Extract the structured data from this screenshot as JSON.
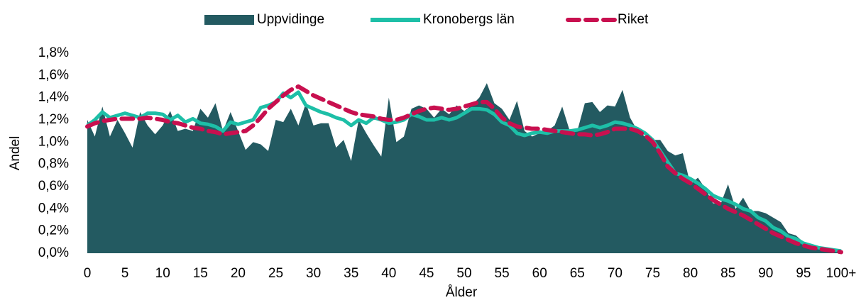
{
  "chart_data": {
    "type": "line",
    "x_label": "Ålder",
    "y_label": "Andel",
    "categories": [
      "0",
      null,
      null,
      null,
      null,
      "5",
      null,
      null,
      null,
      null,
      "10",
      null,
      null,
      null,
      null,
      "15",
      null,
      null,
      null,
      null,
      "20",
      null,
      null,
      null,
      null,
      "25",
      null,
      null,
      null,
      null,
      "30",
      null,
      null,
      null,
      null,
      "35",
      null,
      null,
      null,
      null,
      "40",
      null,
      null,
      null,
      null,
      "45",
      null,
      null,
      null,
      null,
      "50",
      null,
      null,
      null,
      null,
      "55",
      null,
      null,
      null,
      null,
      "60",
      null,
      null,
      null,
      null,
      "65",
      null,
      null,
      null,
      null,
      "70",
      null,
      null,
      null,
      null,
      "75",
      null,
      null,
      null,
      null,
      "80",
      null,
      null,
      null,
      null,
      "85",
      null,
      null,
      null,
      null,
      "90",
      null,
      null,
      null,
      null,
      "95",
      null,
      null,
      null,
      null,
      "100+"
    ],
    "ylim": [
      0,
      1.8
    ],
    "yticks": [
      {
        "value": 0,
        "label": "0,0%"
      },
      {
        "value": 0.2,
        "label": "0,2%"
      },
      {
        "value": 0.4,
        "label": "0,4%"
      },
      {
        "value": 0.6,
        "label": "0,6%"
      },
      {
        "value": 0.8,
        "label": "0,8%"
      },
      {
        "value": 1.0,
        "label": "1,0%"
      },
      {
        "value": 1.2,
        "label": "1,2%"
      },
      {
        "value": 1.4,
        "label": "1,4%"
      },
      {
        "value": 1.6,
        "label": "1,6%"
      },
      {
        "value": 1.8,
        "label": "1,8%"
      }
    ],
    "grid": false,
    "legend": "top",
    "series": [
      {
        "name": "Uppvidinge",
        "type": "area",
        "color": "#235a61",
        "values": [
          1.2,
          1.05,
          1.32,
          1.05,
          1.2,
          1.08,
          0.95,
          1.27,
          1.15,
          1.07,
          1.15,
          1.28,
          1.1,
          1.12,
          1.1,
          1.3,
          1.22,
          1.35,
          1.1,
          1.27,
          1.1,
          0.93,
          1.0,
          0.98,
          0.92,
          1.2,
          1.18,
          1.3,
          1.15,
          1.35,
          1.15,
          1.17,
          1.17,
          0.95,
          1.02,
          0.83,
          1.2,
          1.08,
          0.97,
          0.87,
          1.4,
          1.0,
          1.05,
          1.3,
          1.33,
          1.3,
          1.22,
          1.3,
          1.25,
          1.33,
          1.28,
          1.33,
          1.4,
          1.53,
          1.35,
          1.3,
          1.2,
          1.37,
          1.1,
          1.05,
          1.08,
          1.1,
          1.15,
          1.32,
          1.1,
          1.1,
          1.35,
          1.36,
          1.27,
          1.33,
          1.32,
          1.47,
          1.22,
          1.1,
          1.05,
          1.02,
          1.02,
          0.92,
          0.88,
          0.9,
          0.62,
          0.68,
          0.58,
          0.45,
          0.44,
          0.62,
          0.4,
          0.5,
          0.38,
          0.38,
          0.36,
          0.32,
          0.28,
          0.18,
          0.16,
          0.1,
          0.07,
          0.05,
          0.03,
          0.02,
          0.02
        ]
      },
      {
        "name": "Kronobergs län",
        "type": "line",
        "color": "#1dbfa7",
        "values": [
          1.15,
          1.2,
          1.27,
          1.22,
          1.24,
          1.26,
          1.24,
          1.22,
          1.26,
          1.26,
          1.25,
          1.2,
          1.24,
          1.18,
          1.21,
          1.17,
          1.16,
          1.14,
          1.1,
          1.18,
          1.16,
          1.18,
          1.2,
          1.31,
          1.33,
          1.36,
          1.44,
          1.4,
          1.45,
          1.33,
          1.3,
          1.27,
          1.25,
          1.22,
          1.2,
          1.15,
          1.2,
          1.17,
          1.22,
          1.2,
          1.17,
          1.18,
          1.2,
          1.25,
          1.23,
          1.2,
          1.2,
          1.22,
          1.2,
          1.22,
          1.26,
          1.3,
          1.3,
          1.29,
          1.25,
          1.18,
          1.15,
          1.08,
          1.06,
          1.08,
          1.09,
          1.08,
          1.1,
          1.1,
          1.1,
          1.11,
          1.13,
          1.15,
          1.13,
          1.15,
          1.18,
          1.17,
          1.15,
          1.12,
          1.08,
          1.02,
          0.92,
          0.82,
          0.72,
          0.7,
          0.67,
          0.63,
          0.58,
          0.52,
          0.49,
          0.47,
          0.44,
          0.4,
          0.38,
          0.32,
          0.29,
          0.23,
          0.2,
          0.15,
          0.13,
          0.09,
          0.07,
          0.05,
          0.04,
          0.03,
          0.02
        ]
      },
      {
        "name": "Riket",
        "type": "dashed",
        "color": "#c8104f",
        "values": [
          1.14,
          1.17,
          1.19,
          1.2,
          1.21,
          1.21,
          1.21,
          1.21,
          1.22,
          1.21,
          1.2,
          1.18,
          1.17,
          1.15,
          1.13,
          1.12,
          1.1,
          1.09,
          1.07,
          1.08,
          1.09,
          1.1,
          1.15,
          1.22,
          1.3,
          1.36,
          1.42,
          1.47,
          1.5,
          1.46,
          1.42,
          1.39,
          1.36,
          1.33,
          1.3,
          1.27,
          1.25,
          1.24,
          1.23,
          1.21,
          1.2,
          1.2,
          1.22,
          1.25,
          1.28,
          1.3,
          1.31,
          1.3,
          1.29,
          1.3,
          1.32,
          1.34,
          1.36,
          1.36,
          1.3,
          1.22,
          1.17,
          1.14,
          1.13,
          1.12,
          1.12,
          1.11,
          1.1,
          1.09,
          1.08,
          1.07,
          1.07,
          1.06,
          1.07,
          1.09,
          1.12,
          1.12,
          1.12,
          1.1,
          1.06,
          1.0,
          0.9,
          0.78,
          0.72,
          0.67,
          0.63,
          0.58,
          0.53,
          0.48,
          0.44,
          0.4,
          0.37,
          0.34,
          0.3,
          0.26,
          0.22,
          0.18,
          0.15,
          0.12,
          0.09,
          0.07,
          0.05,
          0.04,
          0.03,
          0.02,
          0.01
        ]
      }
    ]
  }
}
